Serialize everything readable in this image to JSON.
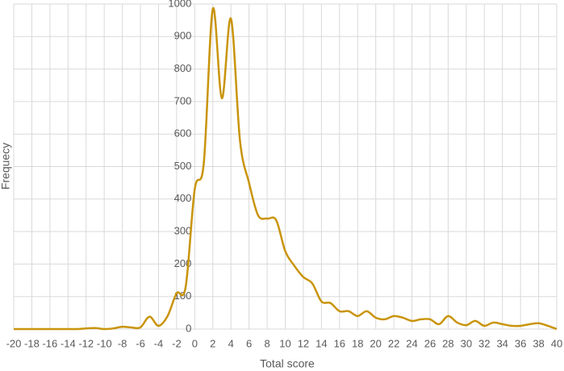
{
  "chart_data": {
    "type": "line",
    "xlabel": "Total score",
    "ylabel": "Frequecy",
    "x": [
      -20,
      -19,
      -18,
      -17,
      -16,
      -15,
      -14,
      -13,
      -12,
      -11,
      -10,
      -9,
      -8,
      -7,
      -6,
      -5,
      -4,
      -3,
      -2,
      -1,
      0,
      1,
      2,
      3,
      4,
      5,
      6,
      7,
      8,
      9,
      10,
      11,
      12,
      13,
      14,
      15,
      16,
      17,
      18,
      19,
      20,
      21,
      22,
      23,
      24,
      25,
      26,
      27,
      28,
      29,
      30,
      31,
      32,
      33,
      34,
      35,
      36,
      37,
      38,
      39,
      40
    ],
    "series": [
      {
        "color": "#c9940a",
        "values": [
          0,
          0,
          0,
          0,
          0,
          0,
          0,
          0,
          2,
          3,
          0,
          2,
          7,
          5,
          5,
          38,
          10,
          40,
          110,
          130,
          430,
          510,
          985,
          710,
          955,
          580,
          450,
          350,
          340,
          335,
          240,
          195,
          160,
          140,
          85,
          80,
          55,
          55,
          40,
          55,
          35,
          30,
          40,
          35,
          25,
          30,
          30,
          15,
          40,
          20,
          12,
          25,
          10,
          20,
          15,
          10,
          10,
          15,
          18,
          10,
          0
        ]
      }
    ],
    "xlim": [
      -20,
      40
    ],
    "xticks": [
      -20,
      -18,
      -16,
      -14,
      -12,
      -10,
      -8,
      -6,
      -4,
      -2,
      0,
      2,
      4,
      6,
      8,
      10,
      12,
      14,
      16,
      18,
      20,
      22,
      24,
      26,
      28,
      30,
      32,
      34,
      36,
      38,
      40
    ],
    "ylim": [
      0,
      1000
    ],
    "yticks": [
      0,
      100,
      200,
      300,
      400,
      500,
      600,
      700,
      800,
      900,
      1000
    ],
    "grid": true
  }
}
